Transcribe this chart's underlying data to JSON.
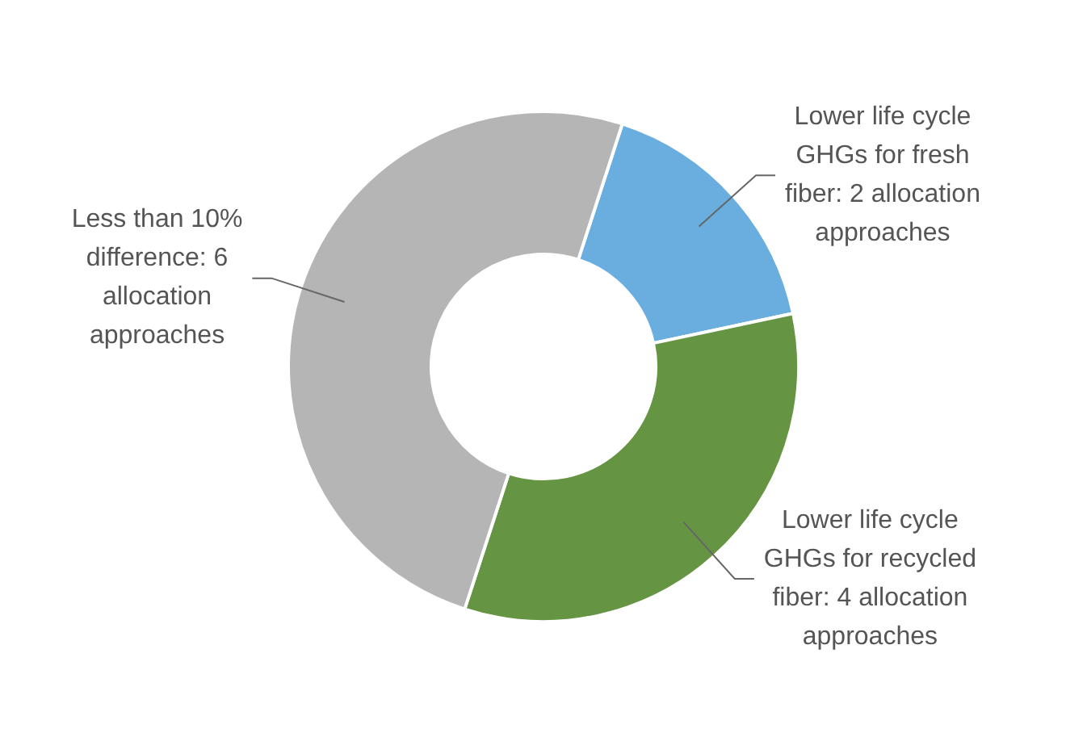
{
  "chart_data": {
    "type": "donut",
    "categories": [
      "Lower life cycle GHGs for fresh fiber: 2 allocation approaches",
      "Lower life cycle GHGs for recycled fiber: 4 allocation approaches",
      "Less than 10% difference: 6 allocation approaches"
    ],
    "values": [
      2,
      4,
      6
    ],
    "colors": [
      "#6aaee0",
      "#659443",
      "#b5b5b5"
    ],
    "legend": false
  }
}
